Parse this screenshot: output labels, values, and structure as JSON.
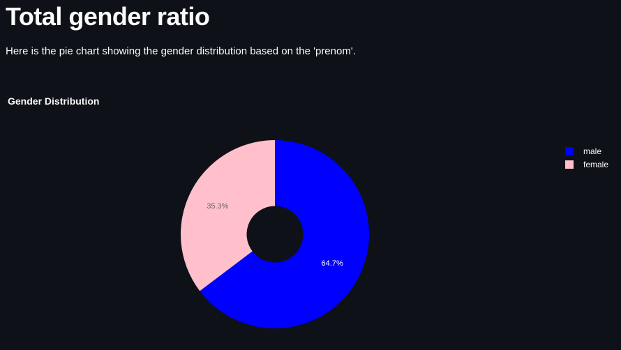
{
  "header": {
    "title": "Total gender ratio",
    "description": "Here is the pie chart showing the gender distribution based on the 'prenom'."
  },
  "chart_data": {
    "type": "pie",
    "title": "Gender Distribution",
    "hole": 0.3,
    "legend_position": "top-right",
    "slices": [
      {
        "label": "male",
        "value": 64.7,
        "text": "64.7%",
        "color": "#0000ff",
        "text_color": "#ffffff"
      },
      {
        "label": "female",
        "value": 35.3,
        "text": "35.3%",
        "color": "#ffc0cb",
        "text_color": "#666666"
      }
    ]
  }
}
